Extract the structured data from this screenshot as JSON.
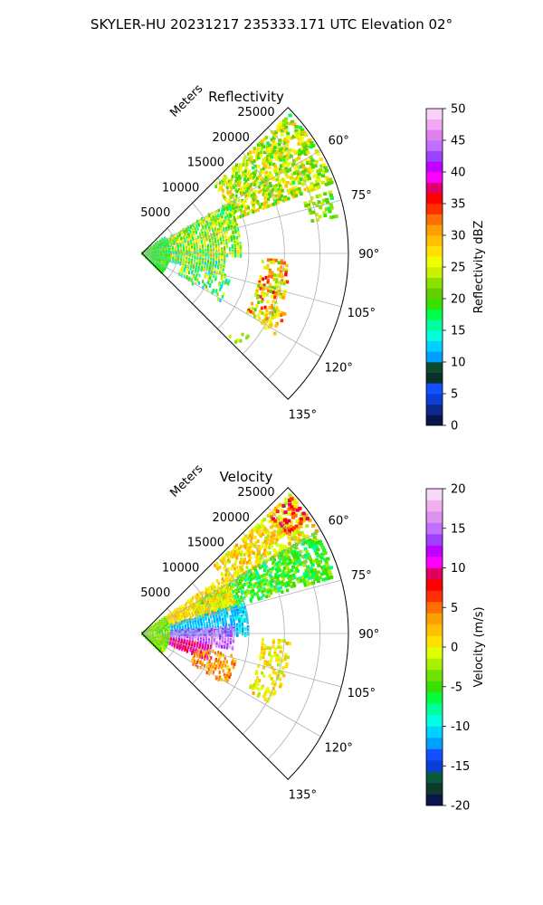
{
  "figure": {
    "suptitle": "SKYLER-HU  20231217  235333.171 UTC Elevation 02°"
  },
  "chart_data": [
    {
      "type": "heatmap",
      "projection": "polar-sector",
      "title": "Reflectivity",
      "range_label": "Meters",
      "range_ticks": [
        5000,
        10000,
        15000,
        20000,
        25000
      ],
      "range_max": 29000,
      "azimuth_range_deg": [
        45,
        135
      ],
      "azimuth_ticks": [
        "60°",
        "75°",
        "90°",
        "105°",
        "120°",
        "135°"
      ],
      "azimuth_tick_values": [
        60,
        75,
        90,
        105,
        120,
        135
      ],
      "grid": true,
      "colorbar": {
        "label": "Reflectivity dBZ",
        "min": 0,
        "max": 50,
        "ticks": [
          "0",
          "5",
          "10",
          "15",
          "20",
          "25",
          "30",
          "35",
          "40",
          "45",
          "50"
        ],
        "colors": [
          "#0a1550",
          "#0b2a8c",
          "#0a3fd6",
          "#1450ff",
          "#0b2f2a",
          "#0e4a2e",
          "#00a0ff",
          "#00d0ff",
          "#00ffd8",
          "#00ff9c",
          "#00ff4a",
          "#38e000",
          "#5fd000",
          "#8ce000",
          "#c8f000",
          "#f0ff00",
          "#ffe000",
          "#ffc000",
          "#ffa000",
          "#ff7000",
          "#ff3000",
          "#ff0000",
          "#e0006a",
          "#ff00ff",
          "#c000ff",
          "#a040ff",
          "#c070ff",
          "#e080f0",
          "#f0a8f0",
          "#f8d0f8"
        ]
      },
      "echo_regions": [
        {
          "az": [
            47,
            70
          ],
          "r": [
            14000,
            28500
          ],
          "values": [
            18,
            30
          ],
          "density": 0.55
        },
        {
          "az": [
            60,
            92
          ],
          "r": [
            4000,
            14000
          ],
          "values": [
            15,
            28
          ],
          "density": 0.55
        },
        {
          "az": [
            88,
            106
          ],
          "r": [
            1000,
            12000
          ],
          "values": [
            12,
            30
          ],
          "density": 0.7
        },
        {
          "az": [
            55,
            135
          ],
          "r": [
            0,
            4000
          ],
          "values": [
            14,
            24
          ],
          "density": 0.85
        },
        {
          "az": [
            104,
            122
          ],
          "r": [
            6000,
            13000
          ],
          "values": [
            12,
            26
          ],
          "density": 0.25
        },
        {
          "az": [
            93,
            120
          ],
          "r": [
            17000,
            21000
          ],
          "values": [
            20,
            36
          ],
          "density": 0.35
        },
        {
          "az": [
            113,
            122
          ],
          "r": [
            19500,
            22000
          ],
          "values": [
            25,
            38
          ],
          "density": 0.3
        },
        {
          "az": [
            128,
            134
          ],
          "r": [
            17000,
            19000
          ],
          "values": [
            20,
            26
          ],
          "density": 0.25
        },
        {
          "az": [
            72,
            80
          ],
          "r": [
            24000,
            28500
          ],
          "values": [
            18,
            25
          ],
          "density": 0.3
        }
      ]
    },
    {
      "type": "heatmap",
      "projection": "polar-sector",
      "title": "Velocity",
      "range_label": "Meters",
      "range_ticks": [
        5000,
        10000,
        15000,
        20000,
        25000
      ],
      "range_max": 29000,
      "azimuth_range_deg": [
        45,
        135
      ],
      "azimuth_ticks": [
        "60°",
        "75°",
        "90°",
        "105°",
        "120°",
        "135°"
      ],
      "azimuth_tick_values": [
        60,
        75,
        90,
        105,
        120,
        135
      ],
      "grid": true,
      "colorbar": {
        "label": "Velocity (m/s)",
        "min": -20,
        "max": 20,
        "ticks": [
          "-20",
          "-15",
          "-10",
          "-5",
          "0",
          "5",
          "10",
          "15",
          "20"
        ],
        "colors": [
          "#0a1550",
          "#0e3a2e",
          "#0b5a40",
          "#0a3fd6",
          "#1450ff",
          "#00a0ff",
          "#00d0ff",
          "#00ffe0",
          "#00ff9c",
          "#00ff40",
          "#38e000",
          "#70e000",
          "#a8f000",
          "#e0ff00",
          "#ffe000",
          "#ffc000",
          "#ffa000",
          "#ff7000",
          "#ff3000",
          "#ff0000",
          "#e00060",
          "#ff00ff",
          "#c000ff",
          "#a040ff",
          "#c070ff",
          "#e090f0",
          "#f0b0f0",
          "#f8d8f8"
        ]
      },
      "echo_regions": [
        {
          "az": [
            47,
            60
          ],
          "r": [
            14000,
            28500
          ],
          "values": [
            -2,
            4
          ],
          "density": 0.55
        },
        {
          "az": [
            60,
            74
          ],
          "r": [
            8000,
            28500
          ],
          "values": [
            -8,
            -2
          ],
          "density": 0.6
        },
        {
          "az": [
            55,
            75
          ],
          "r": [
            3000,
            14000
          ],
          "values": [
            -1,
            3
          ],
          "density": 0.55
        },
        {
          "az": [
            74,
            92
          ],
          "r": [
            2000,
            15000
          ],
          "values": [
            -13,
            -9
          ],
          "density": 0.65
        },
        {
          "az": [
            86,
            100
          ],
          "r": [
            3000,
            13000
          ],
          "values": [
            12,
            18
          ],
          "density": 0.7
        },
        {
          "az": [
            100,
            112
          ],
          "r": [
            3000,
            10000
          ],
          "values": [
            8,
            11
          ],
          "density": 0.7
        },
        {
          "az": [
            104,
            122
          ],
          "r": [
            8000,
            14000
          ],
          "values": [
            1,
            6
          ],
          "density": 0.35
        },
        {
          "az": [
            55,
            135
          ],
          "r": [
            0,
            4000
          ],
          "values": [
            -6,
            0
          ],
          "density": 0.85
        },
        {
          "az": [
            93,
            120
          ],
          "r": [
            17000,
            21000
          ],
          "values": [
            -2,
            3
          ],
          "density": 0.35
        },
        {
          "az": [
            48,
            56
          ],
          "r": [
            24500,
            28500
          ],
          "values": [
            5,
            10
          ],
          "density": 0.35
        }
      ]
    }
  ]
}
